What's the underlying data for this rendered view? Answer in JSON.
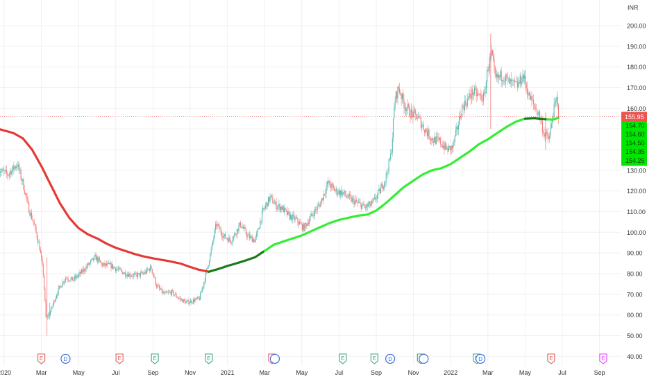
{
  "currency": "INR",
  "colors": {
    "up": "#26a69a",
    "down": "#ef5350",
    "ma_down": "#e53935",
    "ma_up_light": "#33ee33",
    "ma_up_dark": "#1b7a1b",
    "price_line": "#ef5350",
    "label_green": "#00e600",
    "grid": "#eef0f3",
    "axis_text": "#333333",
    "event_earnings": "#3aa57a",
    "event_earnings_red": "#e05a5a",
    "event_dividend": "#3b6fd6",
    "event_future": "#e040fb"
  },
  "chart_data": {
    "type": "candlestick",
    "y_axis": {
      "min": 40,
      "max": 200,
      "step": 10,
      "labels": [
        "200.00",
        "190.00",
        "180.00",
        "170.00",
        "160.00",
        "150.00",
        "140.00",
        "130.00",
        "120.00",
        "110.00",
        "100.00",
        "90.00",
        "80.00",
        "70.00",
        "60.00",
        "50.00",
        "40.00"
      ]
    },
    "x_axis": {
      "labels": [
        {
          "text": "2020",
          "month": 0
        },
        {
          "text": "Mar",
          "month": 2
        },
        {
          "text": "May",
          "month": 4
        },
        {
          "text": "Jul",
          "month": 6
        },
        {
          "text": "Sep",
          "month": 8
        },
        {
          "text": "Nov",
          "month": 10
        },
        {
          "text": "2021",
          "month": 12
        },
        {
          "text": "Mar",
          "month": 14
        },
        {
          "text": "May",
          "month": 16
        },
        {
          "text": "Jul",
          "month": 18
        },
        {
          "text": "Sep",
          "month": 20
        },
        {
          "text": "Nov",
          "month": 22
        },
        {
          "text": "2022",
          "month": 24
        },
        {
          "text": "Mar",
          "month": 26
        },
        {
          "text": "May",
          "month": 28
        },
        {
          "text": "Jul",
          "month": 30
        },
        {
          "text": "Sep",
          "month": 32
        }
      ]
    },
    "price_path": [
      [
        -0.3,
        130
      ],
      [
        0.2,
        128
      ],
      [
        0.7,
        133
      ],
      [
        1.0,
        124
      ],
      [
        1.3,
        112
      ],
      [
        1.6,
        104
      ],
      [
        1.9,
        93
      ],
      [
        2.1,
        80
      ],
      [
        2.25,
        58
      ],
      [
        2.5,
        62
      ],
      [
        2.9,
        72
      ],
      [
        3.3,
        78
      ],
      [
        3.7,
        77
      ],
      [
        4.1,
        80
      ],
      [
        4.5,
        84
      ],
      [
        4.9,
        88
      ],
      [
        5.3,
        84
      ],
      [
        5.7,
        84
      ],
      [
        6.1,
        82
      ],
      [
        6.5,
        80
      ],
      [
        7.0,
        79
      ],
      [
        7.5,
        80
      ],
      [
        7.9,
        83
      ],
      [
        8.2,
        74
      ],
      [
        8.6,
        70
      ],
      [
        9.0,
        71
      ],
      [
        9.4,
        68
      ],
      [
        9.8,
        66
      ],
      [
        10.2,
        67
      ],
      [
        10.5,
        68
      ],
      [
        10.8,
        78
      ],
      [
        11.1,
        90
      ],
      [
        11.4,
        104
      ],
      [
        11.8,
        98
      ],
      [
        12.2,
        96
      ],
      [
        12.7,
        104
      ],
      [
        13.1,
        98
      ],
      [
        13.5,
        96
      ],
      [
        13.9,
        110
      ],
      [
        14.3,
        117
      ],
      [
        14.6,
        113
      ],
      [
        14.9,
        112
      ],
      [
        15.3,
        108
      ],
      [
        15.7,
        106
      ],
      [
        16.1,
        102
      ],
      [
        16.6,
        109
      ],
      [
        17.0,
        114
      ],
      [
        17.4,
        124
      ],
      [
        17.8,
        120
      ],
      [
        18.2,
        119
      ],
      [
        18.6,
        116
      ],
      [
        19.0,
        114
      ],
      [
        19.4,
        112
      ],
      [
        19.8,
        114
      ],
      [
        20.2,
        120
      ],
      [
        20.5,
        126
      ],
      [
        20.8,
        138
      ],
      [
        21.0,
        164
      ],
      [
        21.2,
        170
      ],
      [
        21.5,
        162
      ],
      [
        21.8,
        158
      ],
      [
        22.2,
        156
      ],
      [
        22.6,
        150
      ],
      [
        23.0,
        145
      ],
      [
        23.4,
        144
      ],
      [
        23.8,
        140
      ],
      [
        24.1,
        141
      ],
      [
        24.3,
        148
      ],
      [
        24.6,
        160
      ],
      [
        24.9,
        164
      ],
      [
        25.2,
        168
      ],
      [
        25.5,
        166
      ],
      [
        25.8,
        165
      ],
      [
        26.0,
        180
      ],
      [
        26.2,
        186
      ],
      [
        26.4,
        174
      ],
      [
        26.8,
        176
      ],
      [
        27.2,
        172
      ],
      [
        27.6,
        171
      ],
      [
        27.9,
        176
      ],
      [
        28.2,
        166
      ],
      [
        28.5,
        161
      ],
      [
        28.8,
        156
      ],
      [
        29.0,
        148
      ],
      [
        29.3,
        145
      ],
      [
        29.5,
        158
      ],
      [
        29.7,
        164
      ],
      [
        29.8,
        157
      ]
    ],
    "moving_average": [
      [
        -0.3,
        150
      ],
      [
        0.5,
        148
      ],
      [
        1.0,
        145.5
      ],
      [
        1.5,
        140
      ],
      [
        2.0,
        132
      ],
      [
        2.5,
        123
      ],
      [
        3.0,
        114
      ],
      [
        3.5,
        107
      ],
      [
        4.0,
        102
      ],
      [
        4.5,
        99
      ],
      [
        5.0,
        97
      ],
      [
        5.5,
        94.5
      ],
      [
        6.0,
        92.5
      ],
      [
        6.5,
        91
      ],
      [
        7.0,
        89.5
      ],
      [
        7.5,
        88.3
      ],
      [
        8.0,
        87.4
      ],
      [
        8.5,
        86.6
      ],
      [
        9.0,
        85.8
      ],
      [
        9.5,
        84.8
      ],
      [
        10.0,
        83.2
      ],
      [
        10.5,
        81.8
      ],
      [
        11.0,
        80.9
      ],
      [
        11.5,
        82.2
      ],
      [
        12.0,
        83.7
      ],
      [
        12.5,
        85
      ],
      [
        13.0,
        86.4
      ],
      [
        13.5,
        88
      ],
      [
        14.0,
        91
      ],
      [
        14.5,
        94
      ],
      [
        15.0,
        95.5
      ],
      [
        15.5,
        97
      ],
      [
        16.0,
        98.5
      ],
      [
        16.5,
        100.5
      ],
      [
        17.0,
        102.5
      ],
      [
        17.5,
        104.5
      ],
      [
        18.0,
        106
      ],
      [
        18.5,
        107
      ],
      [
        19.0,
        108
      ],
      [
        19.5,
        108.5
      ],
      [
        20.0,
        110.5
      ],
      [
        20.5,
        114
      ],
      [
        21.0,
        118
      ],
      [
        21.5,
        122
      ],
      [
        22.0,
        125
      ],
      [
        22.5,
        128
      ],
      [
        23.0,
        130
      ],
      [
        23.5,
        131
      ],
      [
        24.0,
        133
      ],
      [
        24.5,
        136
      ],
      [
        25.0,
        139
      ],
      [
        25.5,
        142.5
      ],
      [
        26.0,
        145
      ],
      [
        26.5,
        148
      ],
      [
        27.0,
        151
      ],
      [
        27.5,
        153.5
      ],
      [
        28.0,
        155
      ],
      [
        28.5,
        155.2
      ],
      [
        29.0,
        154.8
      ],
      [
        29.5,
        154.5
      ],
      [
        29.8,
        155.5
      ]
    ],
    "ma_color_segments": [
      {
        "from": -0.3,
        "to": 11.0,
        "color": "ma_down"
      },
      {
        "from": 11.0,
        "to": 14.0,
        "color": "ma_up_dark"
      },
      {
        "from": 14.0,
        "to": 28.0,
        "color": "ma_up_light"
      },
      {
        "from": 28.0,
        "to": 29.2,
        "color": "ma_up_dark"
      },
      {
        "from": 29.2,
        "to": 29.8,
        "color": "ma_up_light"
      }
    ],
    "current_price": {
      "value": 155.95,
      "label": "155.95"
    },
    "ma_labels": [
      "154.70",
      "154.60",
      "154.50",
      "154.35",
      "154.25"
    ],
    "events": [
      {
        "month": 2.0,
        "letter": "E",
        "kind": "earnings_red"
      },
      {
        "month": 3.3,
        "letter": "D",
        "kind": "dividend"
      },
      {
        "month": 6.2,
        "letter": "E",
        "kind": "earnings_red"
      },
      {
        "month": 8.1,
        "letter": "E",
        "kind": "earnings"
      },
      {
        "month": 11.0,
        "letter": "E",
        "kind": "earnings"
      },
      {
        "month": 14.4,
        "letter": "E",
        "kind": "earnings_red"
      },
      {
        "month": 14.55,
        "letter": "",
        "kind": "dividend_ring"
      },
      {
        "month": 18.2,
        "letter": "E",
        "kind": "earnings"
      },
      {
        "month": 19.9,
        "letter": "E",
        "kind": "earnings"
      },
      {
        "month": 20.75,
        "letter": "D",
        "kind": "dividend"
      },
      {
        "month": 22.4,
        "letter": "E",
        "kind": "earnings"
      },
      {
        "month": 22.55,
        "letter": "",
        "kind": "dividend_ring"
      },
      {
        "month": 25.4,
        "letter": "E",
        "kind": "earnings"
      },
      {
        "month": 25.6,
        "letter": "D",
        "kind": "dividend"
      },
      {
        "month": 29.4,
        "letter": "E",
        "kind": "earnings_red"
      },
      {
        "month": 32.2,
        "letter": "E",
        "kind": "future"
      }
    ]
  }
}
